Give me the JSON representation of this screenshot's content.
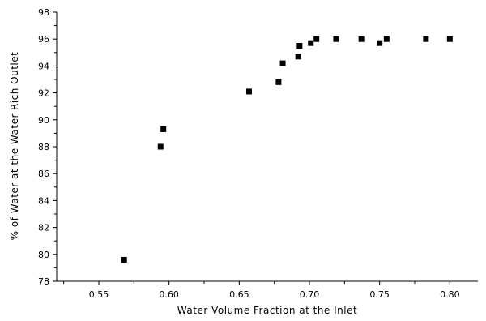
{
  "chart_data": {
    "type": "scatter",
    "title": "",
    "xlabel": "Water Volume Fraction at the Inlet",
    "ylabel": "% of Water at the Water-Rich Outlet",
    "xlim": [
      0.52,
      0.82
    ],
    "ylim": [
      78,
      98
    ],
    "xticks": [
      0.55,
      0.6,
      0.65,
      0.7,
      0.75,
      0.8
    ],
    "xtick_labels": [
      "0.55",
      "0.60",
      "0.65",
      "0.70",
      "0.75",
      "0.80"
    ],
    "yticks": [
      78,
      80,
      82,
      84,
      86,
      88,
      90,
      92,
      94,
      96,
      98
    ],
    "ytick_labels": [
      "78",
      "80",
      "82",
      "84",
      "86",
      "88",
      "90",
      "92",
      "94",
      "96",
      "98"
    ],
    "grid": false,
    "legend": false,
    "marker": "square",
    "marker_color": "#000000",
    "series": [
      {
        "points": [
          [
            0.568,
            79.6
          ],
          [
            0.594,
            88.0
          ],
          [
            0.596,
            89.3
          ],
          [
            0.657,
            92.1
          ],
          [
            0.678,
            92.8
          ],
          [
            0.681,
            94.2
          ],
          [
            0.692,
            94.7
          ],
          [
            0.693,
            95.5
          ],
          [
            0.701,
            95.7
          ],
          [
            0.705,
            96.0
          ],
          [
            0.719,
            96.0
          ],
          [
            0.737,
            96.0
          ],
          [
            0.75,
            95.7
          ],
          [
            0.755,
            96.0
          ],
          [
            0.783,
            96.0
          ],
          [
            0.8,
            96.0
          ]
        ]
      }
    ]
  }
}
